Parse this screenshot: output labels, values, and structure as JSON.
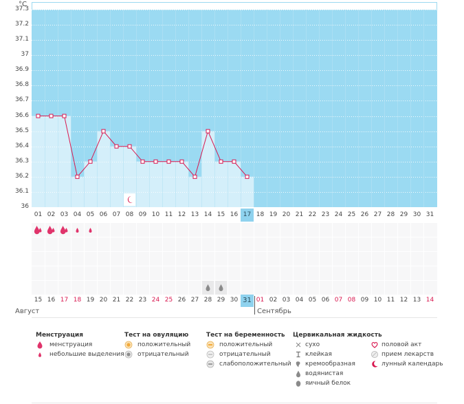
{
  "chart_data": {
    "type": "line",
    "unit": "°C",
    "y_ticks": [
      "36",
      "36.1",
      "36.2",
      "36.3",
      "36.4",
      "36.5",
      "36.6",
      "36.7",
      "36.8",
      "36.9",
      "37",
      "37.1",
      "37.2",
      "37.3"
    ],
    "ylim": [
      36.0,
      37.35
    ],
    "cycle_days": [
      "01",
      "02",
      "03",
      "04",
      "05",
      "06",
      "07",
      "08",
      "09",
      "10",
      "11",
      "12",
      "13",
      "14",
      "15",
      "16",
      "17",
      "18",
      "19",
      "20",
      "21",
      "22",
      "23",
      "24",
      "25",
      "26",
      "27",
      "28",
      "29",
      "30",
      "31"
    ],
    "selected_cycle_day": "17",
    "temperature_series": {
      "values": [
        36.6,
        36.6,
        36.6,
        36.2,
        36.3,
        36.5,
        36.4,
        36.4,
        36.3,
        36.3,
        36.3,
        36.3,
        36.2,
        36.5,
        36.3,
        36.3,
        36.2
      ]
    },
    "lunar_marker_day": "08",
    "dates": [
      "15",
      "16",
      "17",
      "18",
      "19",
      "20",
      "21",
      "22",
      "23",
      "24",
      "25",
      "26",
      "27",
      "28",
      "29",
      "30",
      "31",
      "01",
      "02",
      "03",
      "04",
      "05",
      "06",
      "07",
      "08",
      "09",
      "10",
      "11",
      "12",
      "13",
      "14"
    ],
    "red_dates_indexes": [
      2,
      3,
      9,
      10,
      17,
      23,
      24,
      30
    ],
    "selected_date": "31",
    "months": [
      "Август",
      "Сентябрь"
    ],
    "menstruation_icons": [
      "heavy",
      "heavy",
      "heavy",
      "light",
      "light"
    ],
    "cervical_icons": [
      {
        "day_index": 13,
        "type": "watery"
      },
      {
        "day_index": 14,
        "type": "watery"
      }
    ]
  },
  "legend": {
    "menstruation": {
      "title": "Менструация",
      "items": [
        "менструация",
        "небольшие выделения"
      ]
    },
    "ovulation": {
      "title": "Тест на овуляцию",
      "items": [
        "положительный",
        "отрицательный"
      ]
    },
    "pregnancy": {
      "title": "Тест на беременность",
      "items": [
        "положительный",
        "отрицательный",
        "слабоположительный"
      ]
    },
    "cervical": {
      "title": "Цервикальная жидкость",
      "items": [
        "сухо",
        "клейкая",
        "кремообразная",
        "водянистая",
        "яичный белок"
      ]
    },
    "other": {
      "items": [
        "половой акт",
        "прием лекарств",
        "лунный календарь"
      ]
    }
  },
  "colors": {
    "sky": "#9bdaf2",
    "fill": "#d4effa",
    "line": "#d8174f",
    "accent": "#8fd2ee"
  }
}
